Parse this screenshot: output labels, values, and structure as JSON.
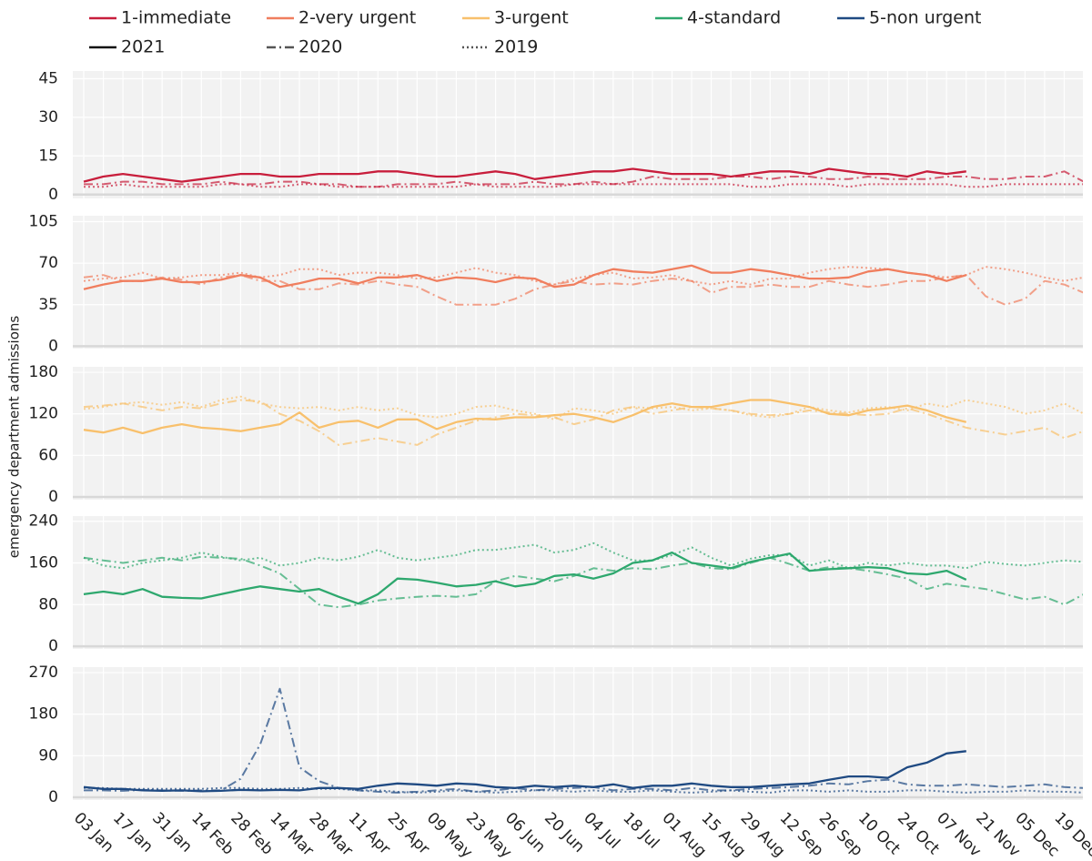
{
  "chart_data": {
    "type": "line",
    "ylabel": "emergency department admissions",
    "categories": [
      "03 Jan",
      null,
      "17 Jan",
      null,
      "31 Jan",
      null,
      "14 Feb",
      null,
      "28 Feb",
      null,
      "14 Mar",
      null,
      "28 Mar",
      null,
      "11 Apr",
      null,
      "25 Apr",
      null,
      "09 May",
      null,
      "23 May",
      null,
      "06 Jun",
      null,
      "20 Jun",
      null,
      "04 Jul",
      null,
      "18 Jul",
      null,
      "01 Aug",
      null,
      "15 Aug",
      null,
      "29 Aug",
      null,
      "12 Sep",
      null,
      "26 Sep",
      null,
      "10 Oct",
      null,
      "24 Oct",
      null,
      "07 Nov",
      null,
      "21 Nov",
      null,
      "05 Dec",
      null,
      "19 Dec",
      null
    ],
    "line_styles": [
      {
        "name": "2021",
        "dash": "solid"
      },
      {
        "name": "2020",
        "dash": "dashdot"
      },
      {
        "name": "2019",
        "dash": "dot"
      }
    ],
    "grid": true,
    "panels": [
      {
        "name": "1-immediate",
        "color": "#c81e3c",
        "ylim": [
          -1.5,
          48
        ],
        "yticks": [
          0,
          15,
          30,
          45
        ],
        "series": [
          {
            "values": [
              5,
              7,
              8,
              7,
              6,
              5,
              6,
              7,
              8,
              8,
              7,
              7,
              8,
              8,
              8,
              9,
              9,
              8,
              7,
              7,
              8,
              9,
              8,
              6,
              7,
              8,
              9,
              9,
              10,
              9,
              8,
              8,
              8,
              7,
              8,
              9,
              9,
              8,
              10,
              9,
              8,
              8,
              7,
              9,
              8,
              9,
              null,
              null,
              null,
              null,
              null,
              null
            ]
          },
          {
            "values": [
              4,
              4,
              5,
              5,
              4,
              4,
              4,
              5,
              4,
              4,
              5,
              5,
              4,
              4,
              3,
              3,
              4,
              4,
              4,
              5,
              4,
              4,
              4,
              5,
              4,
              4,
              5,
              4,
              5,
              7,
              6,
              6,
              6,
              7,
              7,
              6,
              7,
              7,
              6,
              6,
              7,
              6,
              6,
              6,
              7,
              7,
              6,
              6,
              7,
              7,
              9,
              5
            ]
          },
          {
            "values": [
              3,
              3,
              4,
              3,
              3,
              3,
              3,
              4,
              4,
              3,
              3,
              4,
              4,
              3,
              3,
              3,
              3,
              3,
              3,
              3,
              4,
              3,
              3,
              3,
              3,
              4,
              4,
              4,
              4,
              4,
              4,
              4,
              4,
              4,
              3,
              3,
              4,
              4,
              4,
              3,
              4,
              4,
              4,
              4,
              4,
              3,
              3,
              4,
              4,
              4,
              4,
              4
            ]
          }
        ]
      },
      {
        "name": "2-very urgent",
        "color": "#f07e5e",
        "ylim": [
          -2,
          110
        ],
        "yticks": [
          0,
          35,
          70,
          105
        ],
        "series": [
          {
            "values": [
              48,
              52,
              55,
              55,
              57,
              54,
              54,
              56,
              60,
              58,
              50,
              53,
              57,
              57,
              53,
              58,
              58,
              60,
              55,
              58,
              57,
              54,
              58,
              57,
              50,
              52,
              60,
              65,
              63,
              62,
              65,
              68,
              62,
              62,
              65,
              63,
              60,
              57,
              57,
              58,
              63,
              65,
              62,
              60,
              55,
              60,
              null,
              null,
              null,
              null,
              null,
              null
            ]
          },
          {
            "values": [
              58,
              60,
              55,
              55,
              58,
              56,
              52,
              58,
              60,
              55,
              55,
              48,
              48,
              53,
              52,
              55,
              52,
              50,
              42,
              35,
              35,
              35,
              40,
              48,
              52,
              55,
              52,
              53,
              52,
              55,
              57,
              55,
              45,
              50,
              50,
              52,
              50,
              50,
              55,
              52,
              50,
              52,
              55,
              55,
              58,
              60,
              42,
              35,
              40,
              55,
              52,
              45
            ]
          },
          {
            "values": [
              55,
              57,
              58,
              62,
              57,
              58,
              60,
              60,
              62,
              58,
              60,
              65,
              65,
              60,
              62,
              62,
              60,
              57,
              58,
              62,
              66,
              62,
              60,
              55,
              52,
              57,
              60,
              62,
              57,
              58,
              60,
              55,
              52,
              55,
              52,
              57,
              57,
              62,
              65,
              67,
              66,
              65,
              62,
              60,
              58,
              60,
              67,
              65,
              62,
              58,
              55,
              58
            ]
          }
        ]
      },
      {
        "name": "3-urgent",
        "color": "#f8c06c",
        "ylim": [
          -4,
          188
        ],
        "yticks": [
          0,
          60,
          120,
          180
        ],
        "series": [
          {
            "values": [
              97,
              93,
              100,
              92,
              100,
              105,
              100,
              98,
              95,
              100,
              105,
              122,
              100,
              108,
              110,
              100,
              112,
              112,
              98,
              108,
              113,
              112,
              115,
              115,
              118,
              120,
              115,
              108,
              118,
              130,
              135,
              130,
              130,
              135,
              140,
              140,
              135,
              130,
              120,
              118,
              125,
              128,
              132,
              125,
              115,
              108,
              null,
              null,
              null,
              null,
              null,
              null
            ]
          },
          {
            "values": [
              130,
              132,
              135,
              130,
              125,
              130,
              128,
              135,
              140,
              138,
              120,
              110,
              95,
              75,
              80,
              85,
              80,
              75,
              90,
              100,
              110,
              115,
              120,
              118,
              115,
              105,
              112,
              125,
              130,
              120,
              125,
              130,
              128,
              125,
              120,
              118,
              120,
              125,
              122,
              120,
              118,
              120,
              128,
              120,
              110,
              100,
              95,
              90,
              95,
              100,
              85,
              95
            ]
          },
          {
            "values": [
              127,
              130,
              135,
              137,
              133,
              137,
              130,
              140,
              145,
              135,
              130,
              128,
              130,
              125,
              130,
              125,
              128,
              118,
              115,
              120,
              130,
              132,
              125,
              120,
              112,
              128,
              125,
              120,
              130,
              128,
              130,
              125,
              128,
              125,
              118,
              115,
              120,
              130,
              125,
              122,
              128,
              130,
              125,
              135,
              130,
              140,
              135,
              130,
              120,
              125,
              135,
              120
            ]
          }
        ]
      },
      {
        "name": "4-standard",
        "color": "#2ea86e",
        "ylim": [
          -5,
          250
        ],
        "yticks": [
          0,
          80,
          160,
          240
        ],
        "series": [
          {
            "values": [
              100,
              105,
              100,
              110,
              95,
              93,
              92,
              100,
              108,
              115,
              110,
              105,
              110,
              95,
              82,
              100,
              130,
              128,
              122,
              115,
              118,
              125,
              115,
              120,
              135,
              138,
              130,
              140,
              160,
              165,
              180,
              160,
              155,
              150,
              162,
              170,
              178,
              145,
              148,
              150,
              152,
              150,
              140,
              138,
              145,
              128,
              null,
              null,
              null,
              null,
              null,
              null
            ]
          },
          {
            "values": [
              170,
              165,
              160,
              165,
              170,
              165,
              172,
              170,
              168,
              155,
              140,
              110,
              80,
              75,
              80,
              88,
              92,
              95,
              97,
              95,
              100,
              125,
              135,
              130,
              125,
              135,
              150,
              145,
              150,
              148,
              155,
              160,
              150,
              148,
              160,
              170,
              158,
              145,
              152,
              150,
              145,
              138,
              130,
              110,
              120,
              115,
              110,
              100,
              90,
              95,
              80,
              100
            ]
          },
          {
            "values": [
              170,
              155,
              150,
              160,
              165,
              170,
              180,
              172,
              165,
              170,
              155,
              160,
              170,
              165,
              172,
              185,
              170,
              165,
              170,
              175,
              185,
              185,
              190,
              195,
              180,
              185,
              198,
              180,
              165,
              165,
              175,
              190,
              170,
              155,
              168,
              175,
              175,
              155,
              165,
              150,
              160,
              155,
              160,
              155,
              155,
              150,
              162,
              158,
              155,
              160,
              165,
              162
            ]
          }
        ]
      },
      {
        "name": "5-non urgent",
        "color": "#1f4a82",
        "ylim": [
          -6,
          282
        ],
        "yticks": [
          0,
          90,
          180,
          270
        ],
        "series": [
          {
            "values": [
              22,
              18,
              18,
              15,
              14,
              15,
              13,
              14,
              16,
              15,
              16,
              15,
              20,
              20,
              18,
              25,
              30,
              28,
              25,
              30,
              28,
              22,
              20,
              25,
              22,
              25,
              22,
              28,
              20,
              25,
              25,
              30,
              25,
              22,
              22,
              25,
              28,
              30,
              38,
              45,
              45,
              42,
              65,
              75,
              95,
              100,
              null,
              null,
              null,
              null,
              null,
              null
            ]
          },
          {
            "values": [
              15,
              15,
              14,
              16,
              15,
              14,
              15,
              15,
              40,
              115,
              235,
              65,
              35,
              20,
              15,
              12,
              10,
              12,
              15,
              18,
              12,
              15,
              20,
              15,
              18,
              20,
              22,
              15,
              18,
              18,
              15,
              20,
              15,
              15,
              18,
              20,
              22,
              25,
              30,
              28,
              35,
              38,
              28,
              25,
              25,
              28,
              25,
              22,
              25,
              28,
              22,
              20
            ]
          },
          {
            "values": [
              20,
              20,
              18,
              18,
              18,
              18,
              18,
              20,
              20,
              18,
              18,
              20,
              18,
              18,
              15,
              15,
              12,
              10,
              12,
              15,
              12,
              10,
              12,
              15,
              15,
              12,
              15,
              12,
              12,
              15,
              12,
              10,
              12,
              15,
              12,
              10,
              15,
              15,
              12,
              15,
              12,
              12,
              15,
              15,
              12,
              10,
              12,
              12,
              15,
              12,
              12,
              10
            ]
          }
        ]
      }
    ]
  }
}
